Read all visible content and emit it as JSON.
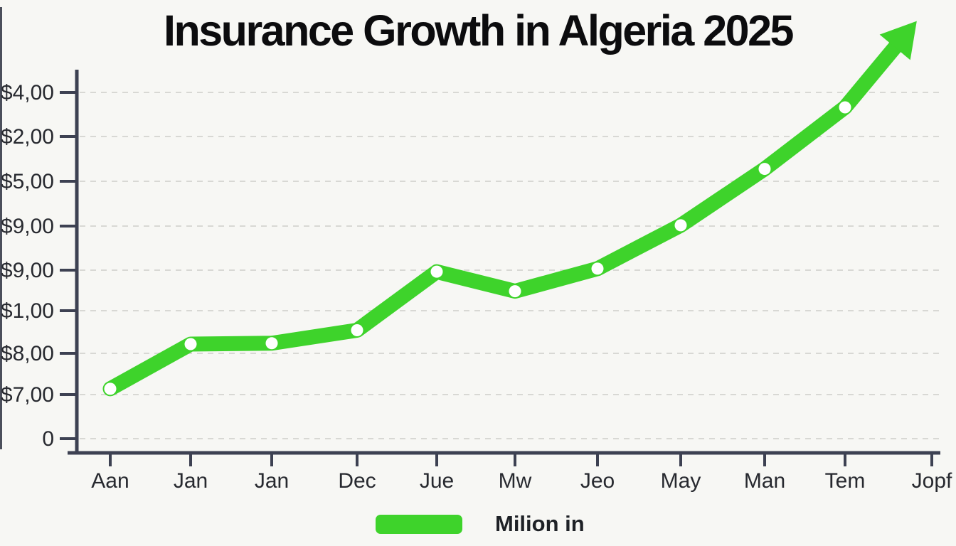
{
  "title": {
    "text": "Insurance Growth in Algeria 2025"
  },
  "legend": {
    "label": "Milion in",
    "swatch_color": "#3ed32b"
  },
  "colors": {
    "background": "#f7f7f4",
    "line_green": "#3ed32b",
    "axis": "#3d4152",
    "gridline": "#d8d8d4",
    "tick_label": "#27292f",
    "title_text": "#0c0c0e"
  },
  "chart_data": {
    "type": "line",
    "title": "Insurance Growth in Algeria 2025",
    "xlabel": "",
    "ylabel": "",
    "x_tick_labels": [
      "Aan",
      "Jan",
      "Jan",
      "Dec",
      "Jue",
      "Mw",
      "Jeo",
      "May",
      "Man",
      "Tem",
      "Jopf"
    ],
    "y_tick_labels_top_to_bottom": [
      "$4,00",
      "$2,00",
      "$5,00",
      "$9,00",
      "$9,00",
      "$1,00",
      "$8,00",
      "$7,00",
      "0"
    ],
    "ylim_grid_units": [
      0,
      8.8
    ],
    "grid": "dashed-horizontal",
    "legend_position": "bottom",
    "trend_arrow_at_end": true,
    "series": [
      {
        "name": "Milion in",
        "color": "#3ed32b",
        "marker": "white-dot",
        "values_grid_units": [
          1.15,
          2.18,
          2.2,
          2.5,
          3.85,
          3.4,
          3.92,
          4.92,
          6.22,
          7.64,
          9.1
        ]
      }
    ]
  }
}
